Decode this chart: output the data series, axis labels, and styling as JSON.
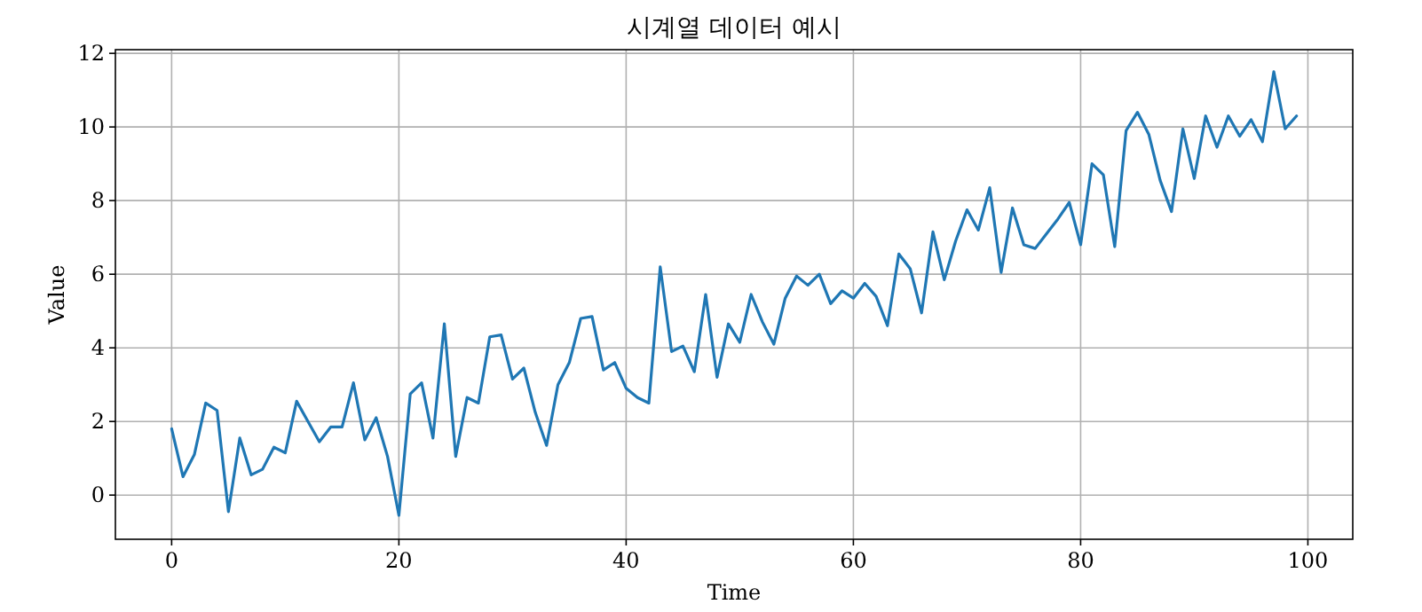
{
  "chart_data": {
    "type": "line",
    "title": "시계열 데이터 예시",
    "xlabel": "Time",
    "ylabel": "Value",
    "x": [
      0,
      1,
      2,
      3,
      4,
      5,
      6,
      7,
      8,
      9,
      10,
      11,
      12,
      13,
      14,
      15,
      16,
      17,
      18,
      19,
      20,
      21,
      22,
      23,
      24,
      25,
      26,
      27,
      28,
      29,
      30,
      31,
      32,
      33,
      34,
      35,
      36,
      37,
      38,
      39,
      40,
      41,
      42,
      43,
      44,
      45,
      46,
      47,
      48,
      49,
      50,
      51,
      52,
      53,
      54,
      55,
      56,
      57,
      58,
      59,
      60,
      61,
      62,
      63,
      64,
      65,
      66,
      67,
      68,
      69,
      70,
      71,
      72,
      73,
      74,
      75,
      76,
      77,
      78,
      79,
      80,
      81,
      82,
      83,
      84,
      85,
      86,
      87,
      88,
      89,
      90,
      91,
      92,
      93,
      94,
      95,
      96,
      97,
      98,
      99
    ],
    "series": [
      {
        "color": "#1f77b4",
        "values": [
          1.8,
          0.5,
          1.1,
          2.5,
          2.3,
          -0.45,
          1.55,
          0.55,
          0.7,
          1.3,
          1.15,
          2.55,
          2.0,
          1.45,
          1.85,
          1.85,
          3.05,
          1.5,
          2.1,
          1.05,
          -0.55,
          2.75,
          3.05,
          1.55,
          4.65,
          1.05,
          2.65,
          2.5,
          4.3,
          4.35,
          3.15,
          3.45,
          2.25,
          1.35,
          3.0,
          3.6,
          4.8,
          4.85,
          3.4,
          3.6,
          2.9,
          2.65,
          2.5,
          6.2,
          3.9,
          4.05,
          3.35,
          5.45,
          3.2,
          4.65,
          4.15,
          5.45,
          4.7,
          4.1,
          5.35,
          5.95,
          5.7,
          6.0,
          5.2,
          5.55,
          5.35,
          5.75,
          5.4,
          4.6,
          6.55,
          6.15,
          4.95,
          7.15,
          5.85,
          6.9,
          7.75,
          7.2,
          8.35,
          6.05,
          7.8,
          6.8,
          6.7,
          7.1,
          7.5,
          7.95,
          6.8,
          9.0,
          8.7,
          6.75,
          9.9,
          10.4,
          9.8,
          8.55,
          7.7,
          9.95,
          8.6,
          10.3,
          9.45,
          10.3,
          9.75,
          10.2,
          9.6,
          11.5,
          9.95,
          10.3
        ]
      }
    ],
    "xlim": [
      -4.95,
      103.95
    ],
    "ylim": [
      -1.2,
      12.1
    ],
    "xticks": [
      0,
      20,
      40,
      60,
      80,
      100
    ],
    "yticks": [
      0,
      2,
      4,
      6,
      8,
      10,
      12
    ],
    "grid": true
  }
}
